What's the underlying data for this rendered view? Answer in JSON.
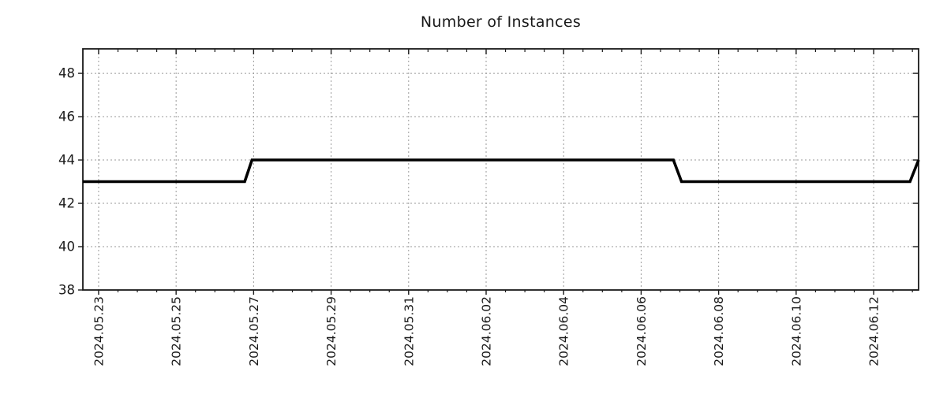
{
  "title": "Number of Instances",
  "colors": {
    "line": "#000000",
    "grid": "#9a9a9a",
    "axis": "#1a1a1a",
    "text": "#1a1a1a",
    "background": "#ffffff"
  },
  "chart_data": {
    "type": "line",
    "title": "Number of Instances",
    "xlabel": "",
    "ylabel": "",
    "grid": true,
    "legend": false,
    "line_style": "step",
    "line_width": 3.6,
    "x_axis": {
      "tick_labels": [
        "2024.05.23",
        "2024.05.25",
        "2024.05.27",
        "2024.05.29",
        "2024.05.31",
        "2024.06.02",
        "2024.06.04",
        "2024.06.06",
        "2024.06.08",
        "2024.06.10",
        "2024.06.12"
      ],
      "first_tick_date": "2024-05-23T00:00",
      "tick_interval_days": 2,
      "minor_tick_interval_days": 0.5,
      "range": [
        "2024-05-22T14:15",
        "2024-06-13T03:50"
      ]
    },
    "y_axis": {
      "ticks": [
        38,
        40,
        42,
        44,
        46,
        48
      ],
      "range": [
        38,
        49.13
      ]
    },
    "series": [
      {
        "name": "Number of Instances",
        "color": "#000000",
        "points": [
          {
            "t": "2024-05-22T14:15",
            "y": 43
          },
          {
            "t": "2024-05-26T18:30",
            "y": 43
          },
          {
            "t": "2024-05-26T23:00",
            "y": 44
          },
          {
            "t": "2024-06-06T20:00",
            "y": 44
          },
          {
            "t": "2024-06-07T01:00",
            "y": 43
          },
          {
            "t": "2024-06-12T22:30",
            "y": 43
          },
          {
            "t": "2024-06-13T03:50",
            "y": 44
          }
        ]
      }
    ]
  }
}
